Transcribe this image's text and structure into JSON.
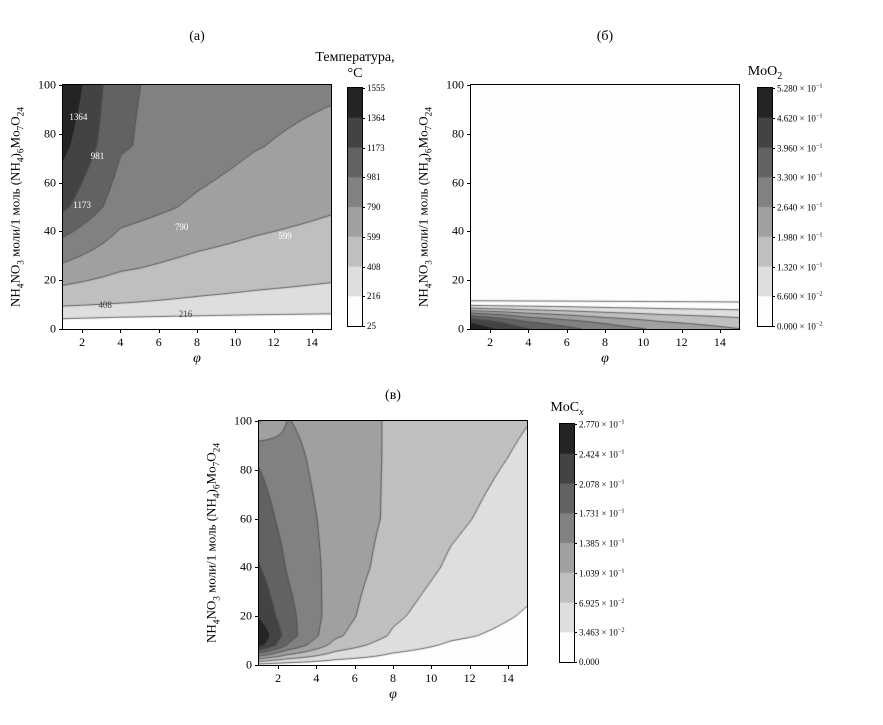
{
  "shared": {
    "xlabel": "φ",
    "ylabel_segments": [
      {
        "t": "NH"
      },
      {
        "t": "4",
        "sub": true
      },
      {
        "t": "NO"
      },
      {
        "t": "3",
        "sub": true
      },
      {
        "t": " моли/1 моль (NH"
      },
      {
        "t": "4",
        "sub": true
      },
      {
        "t": ")"
      },
      {
        "t": "6",
        "sub": true
      },
      {
        "t": "Mo"
      },
      {
        "t": "7",
        "sub": true
      },
      {
        "t": "O"
      },
      {
        "t": "24",
        "sub": true
      }
    ],
    "x_ticks": [
      {
        "v": 2,
        "label": "2"
      },
      {
        "v": 4,
        "label": "4"
      },
      {
        "v": 6,
        "label": "6"
      },
      {
        "v": 8,
        "label": "8"
      },
      {
        "v": 10,
        "label": "10"
      },
      {
        "v": 12,
        "label": "12"
      },
      {
        "v": 14,
        "label": "14"
      }
    ],
    "y_ticks": [
      {
        "v": 0,
        "label": "0"
      },
      {
        "v": 20,
        "label": "20"
      },
      {
        "v": 40,
        "label": "40"
      },
      {
        "v": 60,
        "label": "60"
      },
      {
        "v": 80,
        "label": "80"
      },
      {
        "v": 100,
        "label": "100"
      }
    ]
  },
  "chart_data": [
    {
      "type": "contour",
      "panel_label": "(а)",
      "colorbar_title_lines": [
        {
          "base": "Температура,",
          "sub": ""
        },
        {
          "base": "°C",
          "sub": ""
        }
      ],
      "xlim": [
        1,
        15
      ],
      "ylim": [
        0,
        100
      ],
      "levels": [
        25,
        216,
        408,
        599,
        790,
        981,
        1173,
        1364,
        1555
      ],
      "colorbar_labels": [
        {
          "base": "1555",
          "exp": ""
        },
        {
          "base": "1364",
          "exp": ""
        },
        {
          "base": "1173",
          "exp": ""
        },
        {
          "base": "981",
          "exp": ""
        },
        {
          "base": "790",
          "exp": ""
        },
        {
          "base": "599",
          "exp": ""
        },
        {
          "base": "408",
          "exp": ""
        },
        {
          "base": "216",
          "exp": ""
        },
        {
          "base": "25",
          "exp": ""
        }
      ],
      "grid": {
        "xs": [
          1,
          4,
          8,
          11,
          15
        ],
        "ys": [
          0,
          10,
          25,
          50,
          75,
          100
        ],
        "values": [
          [
            60,
            45,
            35,
            30,
            28
          ],
          [
            430,
            400,
            370,
            350,
            330
          ],
          [
            750,
            620,
            540,
            500,
            460
          ],
          [
            1210,
            880,
            760,
            690,
            620
          ],
          [
            1420,
            1000,
            880,
            800,
            730
          ],
          [
            1555,
            1010,
            900,
            860,
            820
          ]
        ]
      },
      "contour_labels": [
        {
          "text": "1364",
          "x": 1.8,
          "y": 87,
          "color": "#ffffff"
        },
        {
          "text": "981",
          "x": 2.8,
          "y": 71,
          "color": "#ffffff"
        },
        {
          "text": "1173",
          "x": 2.0,
          "y": 51,
          "color": "#ffffff"
        },
        {
          "text": "790",
          "x": 7.2,
          "y": 42,
          "color": "#ffffff"
        },
        {
          "text": "599",
          "x": 12.6,
          "y": 38,
          "color": "#ffffff"
        },
        {
          "text": "408",
          "x": 3.2,
          "y": 10,
          "color": "#444444"
        },
        {
          "text": "216",
          "x": 7.4,
          "y": 6,
          "color": "#444444"
        }
      ],
      "extra_contours": []
    },
    {
      "type": "contour",
      "panel_label": "(б)",
      "colorbar_title_lines": [
        {
          "base": "MoO",
          "sub": "2"
        }
      ],
      "xlim": [
        1,
        15
      ],
      "ylim": [
        0,
        100
      ],
      "levels": [
        0,
        0.066,
        0.132,
        0.198,
        0.264,
        0.33,
        0.396,
        0.462,
        0.528
      ],
      "colorbar_labels": [
        {
          "base": "5.280 × 10",
          "exp": "−1"
        },
        {
          "base": "4.620 × 10",
          "exp": "−1"
        },
        {
          "base": "3.960 × 10",
          "exp": "−1"
        },
        {
          "base": "3.300 × 10",
          "exp": "−1"
        },
        {
          "base": "2.640 × 10",
          "exp": "−1"
        },
        {
          "base": "1.980 × 10",
          "exp": "−1"
        },
        {
          "base": "1.320 × 10",
          "exp": "−1"
        },
        {
          "base": "6.600 × 10",
          "exp": "−2"
        },
        {
          "base": "0.000 × 10",
          "exp": "−2"
        }
      ],
      "grid": {
        "xs": [
          1,
          4,
          8,
          11,
          15
        ],
        "ys": [
          0,
          3,
          6,
          9,
          11,
          100
        ],
        "values": [
          [
            0.52,
            0.4,
            0.3,
            0.25,
            0.2
          ],
          [
            0.46,
            0.33,
            0.25,
            0.2,
            0.16
          ],
          [
            0.3,
            0.22,
            0.16,
            0.13,
            0.11
          ],
          [
            0.1,
            0.08,
            0.06,
            0.05,
            0.04
          ],
          [
            0,
            0,
            0,
            0,
            0
          ],
          [
            0,
            0,
            0,
            0,
            0
          ]
        ]
      },
      "contour_labels": [],
      "extra_contours": [
        0.004
      ]
    },
    {
      "type": "contour",
      "panel_label": "(в)",
      "colorbar_title_lines": [
        {
          "base": "MoC",
          "sub": "x",
          "italic_sub": true
        }
      ],
      "xlim": [
        1,
        15
      ],
      "ylim": [
        0,
        100
      ],
      "levels": [
        0,
        0.03463,
        0.06925,
        0.10388,
        0.1385,
        0.17313,
        0.20775,
        0.24238,
        0.277
      ],
      "colorbar_labels": [
        {
          "base": "2.770 × 10",
          "exp": "−1"
        },
        {
          "base": "2.424 × 10",
          "exp": "−1"
        },
        {
          "base": "2.078 × 10",
          "exp": "−1"
        },
        {
          "base": "1.731 × 10",
          "exp": "−1"
        },
        {
          "base": "1.385 × 10",
          "exp": "−1"
        },
        {
          "base": "1.039 × 10",
          "exp": "−1"
        },
        {
          "base": "6.925 × 10",
          "exp": "−2"
        },
        {
          "base": "3.463 × 10",
          "exp": "−2"
        },
        {
          "base": "0.000",
          "exp": ""
        }
      ],
      "grid": {
        "xs": [
          1,
          2.5,
          5,
          8,
          11,
          15
        ],
        "ys": [
          0,
          4,
          8,
          12,
          20,
          40,
          60,
          85,
          100
        ],
        "values": [
          [
            0.02,
            0.015,
            0.01,
            0.007,
            0.004,
            0.002
          ],
          [
            0.15,
            0.1,
            0.055,
            0.03,
            0.018,
            0.01
          ],
          [
            0.26,
            0.17,
            0.09,
            0.05,
            0.03,
            0.018
          ],
          [
            0.277,
            0.19,
            0.11,
            0.065,
            0.04,
            0.025
          ],
          [
            0.24,
            0.185,
            0.12,
            0.075,
            0.05,
            0.032
          ],
          [
            0.21,
            0.17,
            0.125,
            0.09,
            0.065,
            0.045
          ],
          [
            0.19,
            0.16,
            0.125,
            0.098,
            0.075,
            0.055
          ],
          [
            0.17,
            0.15,
            0.12,
            0.1,
            0.082,
            0.065
          ],
          [
            0.1,
            0.14,
            0.12,
            0.1,
            0.085,
            0.07
          ]
        ]
      },
      "contour_labels": [],
      "extra_contours": []
    }
  ]
}
